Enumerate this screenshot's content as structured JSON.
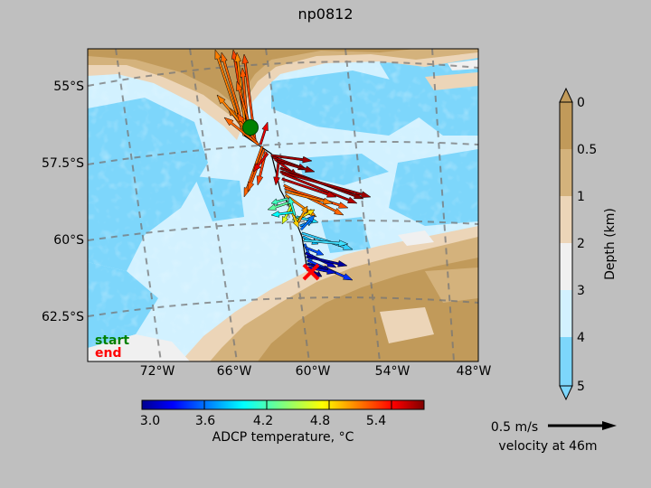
{
  "title": "np0812",
  "map": {
    "lat_labels": [
      "55°S",
      "57.5°S",
      "60°S",
      "62.5°S"
    ],
    "lon_labels": [
      "72°W",
      "66°W",
      "60°W",
      "54°W",
      "48°W"
    ],
    "legend": {
      "start_label": "start",
      "end_label": "end",
      "start_color": "#008000",
      "end_color": "#ff0000"
    }
  },
  "temp_colorbar": {
    "ticks": [
      "3.0",
      "3.6",
      "4.2",
      "4.8",
      "5.4"
    ],
    "label": "ADCP temperature, °C",
    "range": [
      3.0,
      5.7
    ]
  },
  "depth_colorbar": {
    "ticks": [
      "0",
      "0.5",
      "1",
      "2",
      "3",
      "4",
      "5"
    ],
    "label": "Depth (km)",
    "colors": [
      "#c19a5a",
      "#d4b27c",
      "#ecd5b8",
      "#f0f0f0",
      "#d2f1ff",
      "#7dd6fb"
    ]
  },
  "scale": {
    "speed_label": "0.5 m/s",
    "depth_label": "velocity at 46m"
  }
}
